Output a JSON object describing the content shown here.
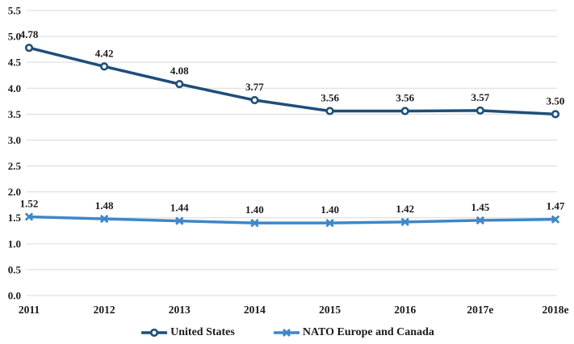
{
  "chart_data": {
    "type": "line",
    "title": "",
    "xlabel": "",
    "ylabel": "",
    "categories": [
      "2011",
      "2012",
      "2013",
      "2014",
      "2015",
      "2016",
      "2017e",
      "2018e"
    ],
    "series": [
      {
        "name": "United States",
        "values": [
          4.78,
          4.42,
          4.08,
          3.77,
          3.56,
          3.56,
          3.57,
          3.5
        ],
        "labels": [
          "4.78",
          "4.42",
          "4.08",
          "3.77",
          "3.56",
          "3.56",
          "3.57",
          "3.50"
        ],
        "color": "#1F4E79",
        "marker": "circle-open"
      },
      {
        "name": "NATO Europe and Canada",
        "values": [
          1.52,
          1.48,
          1.44,
          1.4,
          1.4,
          1.42,
          1.45,
          1.47
        ],
        "labels": [
          "1.52",
          "1.48",
          "1.44",
          "1.40",
          "1.40",
          "1.42",
          "1.45",
          "1.47"
        ],
        "color": "#3E87C8",
        "marker": "x"
      }
    ],
    "y_ticks": [
      "0.0",
      "0.5",
      "1.0",
      "1.5",
      "2.0",
      "2.5",
      "3.0",
      "3.5",
      "4.0",
      "4.5",
      "5.0",
      "5.5"
    ],
    "ylim": [
      0.0,
      5.5
    ],
    "grid": "horizontal",
    "gridline_color": "#D9D9D9",
    "text_color": "#1A1A1A",
    "data_labels": true,
    "legend_position": "bottom"
  }
}
